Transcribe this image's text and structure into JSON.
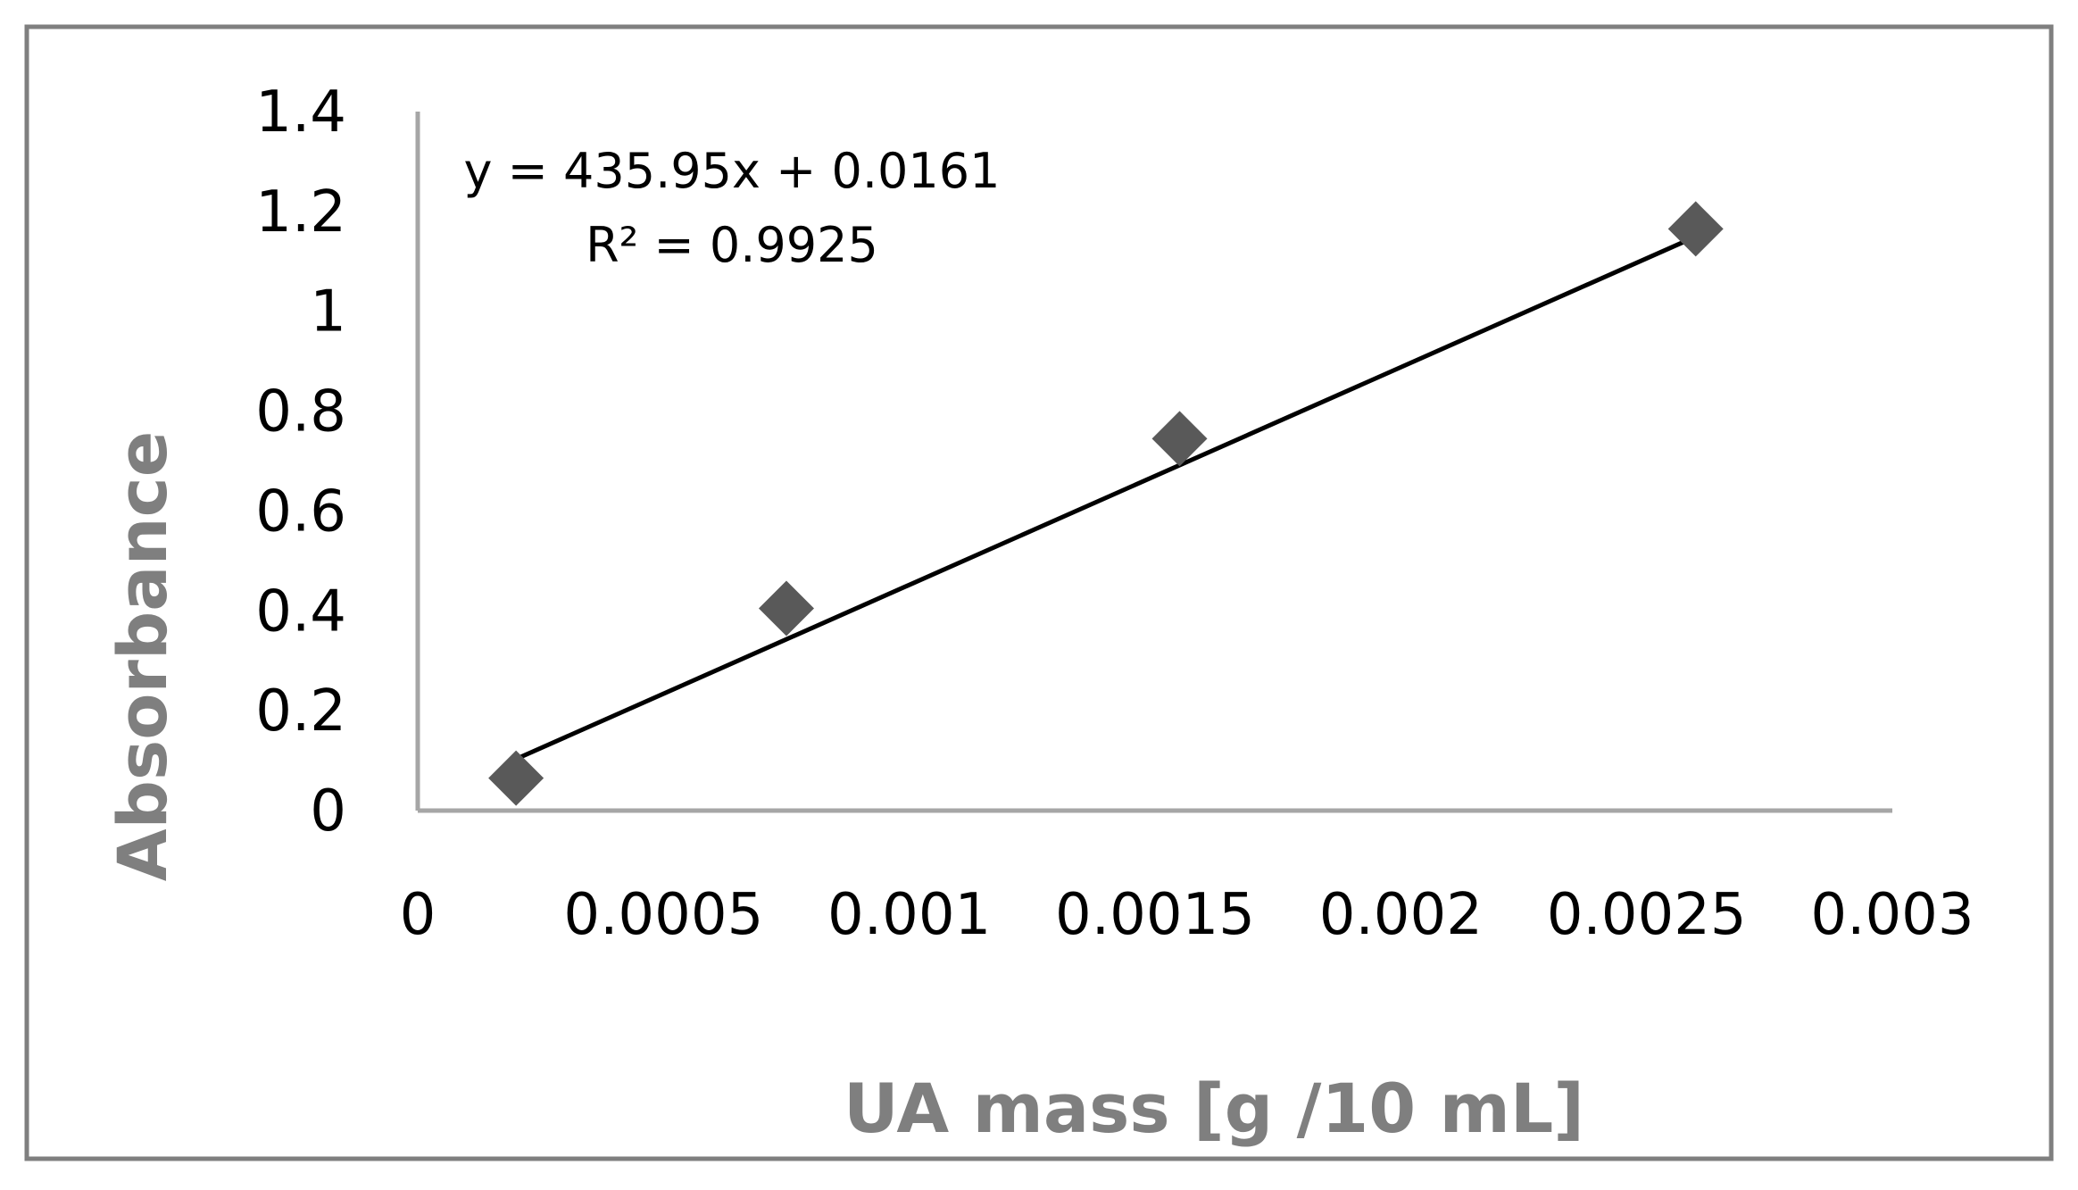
{
  "chart_data": {
    "type": "scatter",
    "xlabel": "UA mass [g /10 mL]",
    "ylabel": "Absorbance",
    "xlim": [
      0,
      0.003
    ],
    "ylim": [
      0,
      1.4
    ],
    "x_ticks": [
      "0",
      "0.0005",
      "0.001",
      "0.0015",
      "0.002",
      "0.0025",
      "0.003"
    ],
    "y_ticks": [
      "0",
      "0.2",
      "0.4",
      "0.6",
      "0.8",
      "1",
      "1.2",
      "1.4"
    ],
    "grid": false,
    "legend": "none",
    "series": [
      {
        "x": [
          0.0002,
          0.00075,
          0.00155,
          0.0026
        ],
        "y": [
          0.065,
          0.405,
          0.745,
          1.165
        ],
        "color": "#595959",
        "marker": "diamond"
      }
    ],
    "trendline": {
      "slope": 435.95,
      "intercept": 0.0161,
      "x_range": [
        0.0002,
        0.0026
      ],
      "color": "#000000"
    },
    "annotations": {
      "equation": "y = 435.95x + 0.0161",
      "r_squared": "R² = 0.9925"
    },
    "colors": {
      "frame": "#7f7f7f",
      "axis": "#a6a6a6",
      "title": "#7f7f7f"
    }
  }
}
